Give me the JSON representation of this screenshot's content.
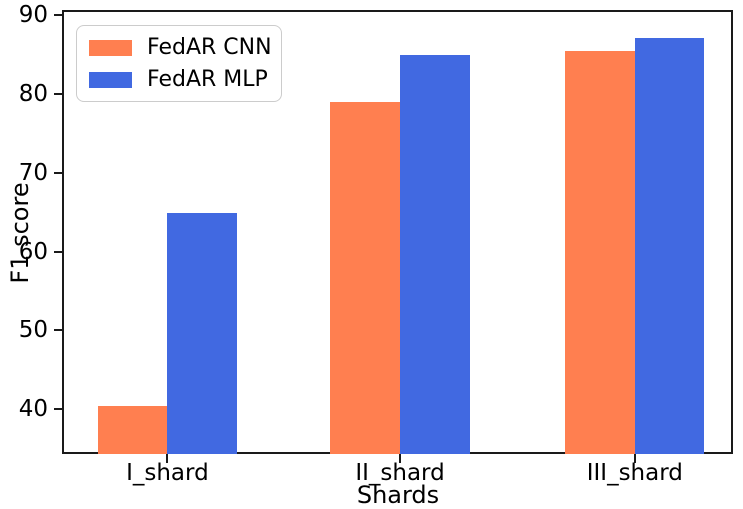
{
  "figure": {
    "type": "matplotlib-style bar chart"
  },
  "chart_data": {
    "type": "bar",
    "title": "",
    "xlabel": "Shards",
    "ylabel": "F1 score",
    "categories": [
      "I_shard",
      "II_shard",
      "III_shard"
    ],
    "series": [
      {
        "name": "FedAR CNN",
        "color": "#FF7F50",
        "values": [
          40.4,
          79.0,
          85.4
        ]
      },
      {
        "name": "FedAR MLP",
        "color": "#4169E1",
        "values": [
          64.9,
          85.0,
          87.1
        ]
      }
    ],
    "ylim": [
      34.3,
      90.4
    ],
    "yticks": [
      40,
      50,
      60,
      70,
      80,
      90
    ],
    "grid": false,
    "legend_position": "upper left",
    "axis_color": "#1a1a1a",
    "text_color": "#000000"
  }
}
